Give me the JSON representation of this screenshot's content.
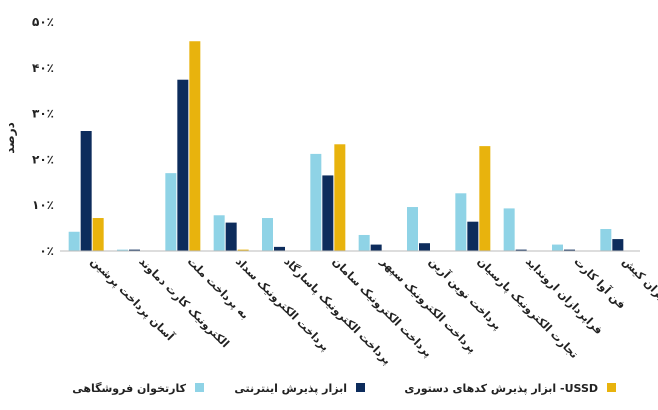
{
  "chart_data": {
    "type": "bar",
    "ylabel": "درصد",
    "ylim": [
      0,
      50
    ],
    "yticks": [
      "۰٪",
      "۱۰٪",
      "۲۰٪",
      "۳۰٪",
      "۴۰٪",
      "۵۰٪"
    ],
    "grid": false,
    "legend_position": "bottom",
    "categories": [
      "آسان پرداخت پرشین",
      "الکترونیک کارت دماوند",
      "به پرداخت ملت",
      "پرداخت الکترونیک سداد",
      "پرداخت الکترونیک پاسارگاد",
      "پرداخت الکترونیک سامان",
      "پرداخت الکترونیک سپهر",
      "پرداخت نوین آرین",
      "تجارت الکترونیک پارسیان",
      "فراپردازان ارونداید",
      "فن آوا کارت",
      "کارت اعتباری ایران کیش"
    ],
    "series": [
      {
        "name": "کارتخوان فروشگاهی",
        "color": "#8fd3e6",
        "values": [
          4.2,
          0.3,
          17.0,
          7.8,
          7.2,
          21.2,
          3.5,
          9.6,
          12.6,
          9.3,
          1.4,
          4.8
        ]
      },
      {
        "name": "ابزار پذیرش اینترنتی",
        "color": "#0d2c5c",
        "values": [
          26.2,
          0.3,
          37.4,
          6.2,
          0.9,
          16.5,
          1.4,
          1.7,
          6.4,
          0.3,
          0.3,
          2.6
        ]
      },
      {
        "name": "ابزار پذیرش کدهای دستوری -USSD",
        "color": "#e8b30d",
        "values": [
          7.2,
          0.0,
          45.8,
          0.3,
          0.0,
          23.3,
          0.0,
          0.0,
          22.9,
          0.0,
          0.0,
          0.0
        ]
      }
    ]
  }
}
